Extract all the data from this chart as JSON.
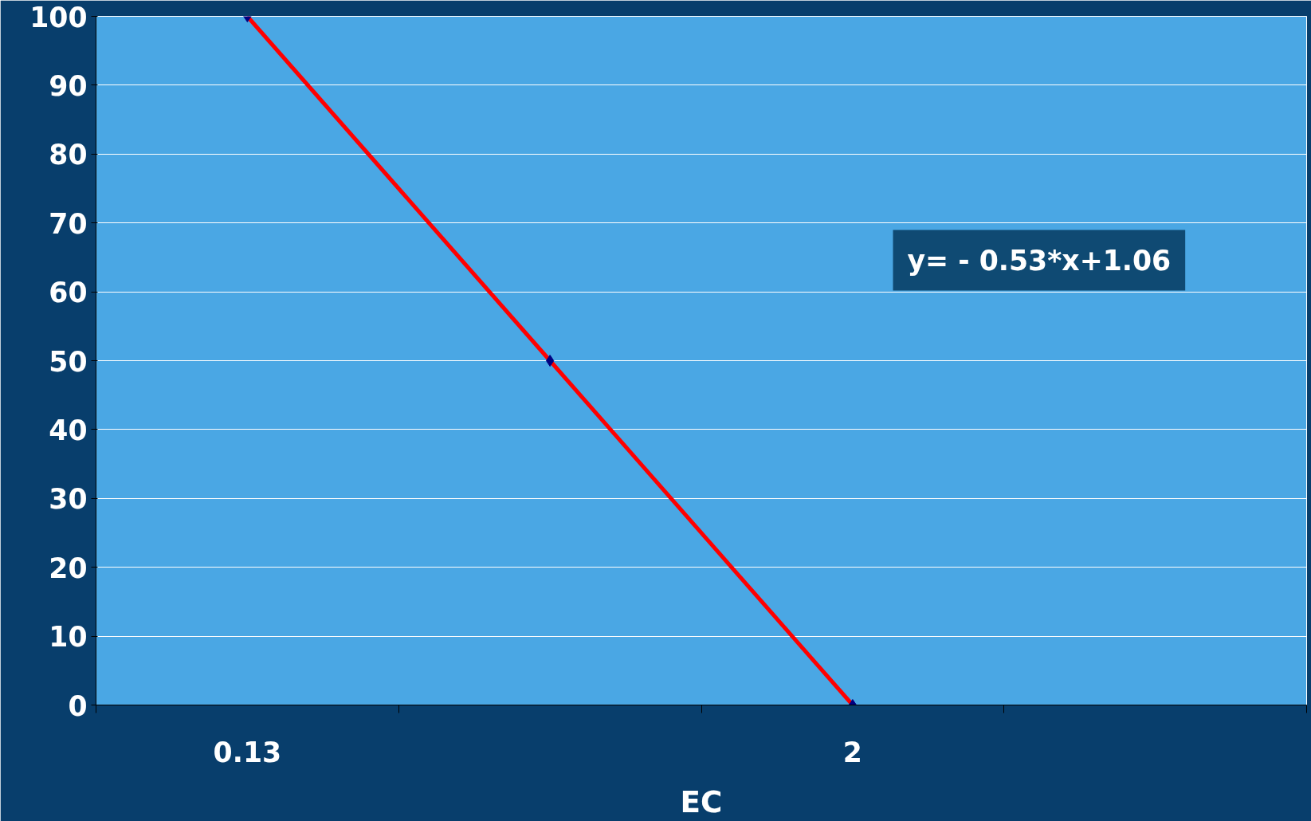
{
  "chart_data": {
    "type": "line",
    "xlabel": "EC",
    "categories": [
      "0.13",
      null,
      "2",
      null
    ],
    "series": [
      {
        "color": "#ff0000",
        "values": [
          100,
          50,
          0,
          null
        ]
      }
    ],
    "ylim": [
      0,
      100
    ],
    "yticks": [
      0,
      10,
      20,
      30,
      40,
      50,
      60,
      70,
      80,
      90,
      100
    ],
    "grid": "y",
    "marker": "diamond",
    "line_style": "solid",
    "annotations": [
      "y= - 0.53*x+1.06"
    ]
  }
}
